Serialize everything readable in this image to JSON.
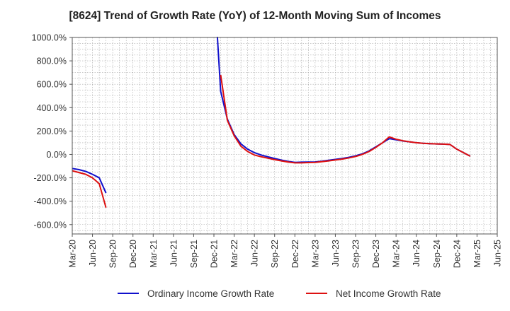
{
  "title": "[8624]  Trend of Growth Rate (YoY) of 12-Month Moving Sum of Incomes",
  "chart_data": {
    "type": "line",
    "title": "[8624]  Trend of Growth Rate (YoY) of 12-Month Moving Sum of Incomes",
    "xlabel": "",
    "ylabel": "",
    "x": [
      "2020-03",
      "2020-04",
      "2020-05",
      "2020-06",
      "2020-07",
      "2020-08",
      "2020-09",
      "2020-10",
      "2020-11",
      "2020-12",
      "2021-01",
      "2021-02",
      "2021-03",
      "2021-04",
      "2021-05",
      "2021-06",
      "2021-07",
      "2021-08",
      "2021-09",
      "2021-10",
      "2021-11",
      "2021-12",
      "2022-01",
      "2022-02",
      "2022-03",
      "2022-04",
      "2022-05",
      "2022-06",
      "2022-07",
      "2022-08",
      "2022-09",
      "2022-10",
      "2022-11",
      "2022-12",
      "2023-01",
      "2023-02",
      "2023-03",
      "2023-04",
      "2023-05",
      "2023-06",
      "2023-07",
      "2023-08",
      "2023-09",
      "2023-10",
      "2023-11",
      "2023-12",
      "2024-01",
      "2024-02",
      "2024-03",
      "2024-04",
      "2024-05",
      "2024-06",
      "2024-07",
      "2024-08",
      "2024-09",
      "2024-10",
      "2024-11",
      "2024-12",
      "2025-01",
      "2025-02",
      "2025-03"
    ],
    "x_ticks": [
      "Mar-20",
      "Jun-20",
      "Sep-20",
      "Dec-20",
      "Mar-21",
      "Jun-21",
      "Sep-21",
      "Dec-21",
      "Mar-22",
      "Jun-22",
      "Sep-22",
      "Dec-22",
      "Mar-23",
      "Jun-23",
      "Sep-23",
      "Dec-23",
      "Mar-24",
      "Jun-24",
      "Sep-24",
      "Dec-24",
      "Mar-25",
      "Jun-25"
    ],
    "y_ticks": [
      "1000.0%",
      "800.0%",
      "600.0%",
      "400.0%",
      "200.0%",
      "0.0%",
      "-200.0%",
      "-400.0%",
      "-600.0%"
    ],
    "ylim": [
      -680,
      1000
    ],
    "xlim": [
      "2020-03",
      "2025-06"
    ],
    "grid": true,
    "legend_position": "bottom",
    "series": [
      {
        "name": "Ordinary Income Growth Rate",
        "color": "#1010cc",
        "values": [
          -120,
          -130,
          -145,
          -170,
          -200,
          -330,
          null,
          null,
          null,
          null,
          null,
          null,
          null,
          null,
          null,
          null,
          null,
          null,
          null,
          null,
          null,
          1000,
          540,
          300,
          170,
          90,
          45,
          15,
          -5,
          -20,
          -35,
          -48,
          -60,
          -68,
          -66,
          -65,
          -64,
          -58,
          -50,
          -42,
          -35,
          -25,
          -12,
          5,
          30,
          65,
          100,
          135,
          125,
          115,
          108,
          100,
          95,
          92,
          90,
          88,
          85,
          45,
          15,
          -15,
          null
        ],
        "overflow_top": true
      },
      {
        "name": "Net Income Growth Rate",
        "color": "#dd1111",
        "values": [
          -140,
          -155,
          -170,
          -200,
          -250,
          -455,
          null,
          null,
          null,
          null,
          null,
          null,
          null,
          null,
          null,
          null,
          null,
          null,
          null,
          null,
          null,
          null,
          680,
          290,
          160,
          70,
          25,
          -5,
          -20,
          -32,
          -45,
          -55,
          -65,
          -72,
          -72,
          -70,
          -68,
          -62,
          -55,
          -48,
          -40,
          -30,
          -18,
          0,
          25,
          60,
          100,
          150,
          130,
          117,
          108,
          100,
          95,
          92,
          90,
          88,
          85,
          45,
          15,
          -15,
          null
        ],
        "overflow_top": true
      }
    ]
  }
}
